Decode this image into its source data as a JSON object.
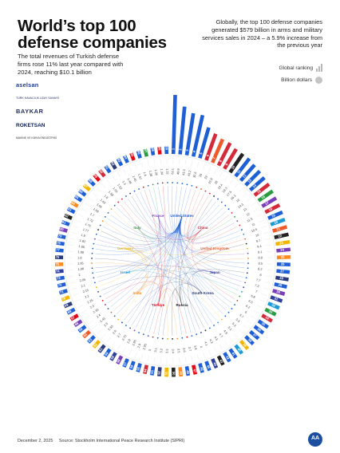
{
  "header": {
    "title": "World’s top 100 defense companies",
    "subtitle": "The total revenues of Turkish defense firms rose 11% last year compared with 2024, reaching $10.1 billion",
    "note": "Globally, the top 100 defense companies generated $579 billion in arms and military services sales in 2024 – a 5.9% increase from the previous year"
  },
  "legend": {
    "ranking_label": "Global ranking",
    "value_label": "Billion dollars",
    "ranking_icon": "ascending-bars-icon",
    "value_icon": "gray-dot-icon"
  },
  "logos": [
    {
      "name": "aselsan",
      "text": "aselsan"
    },
    {
      "name": "tusas",
      "text": "TÜRK HAVACILIK UZAY SANAYİİ"
    },
    {
      "name": "baykar",
      "text": "BAYKAR"
    },
    {
      "name": "roketsan",
      "text": "ROKETSAN"
    },
    {
      "name": "mke",
      "text": "MAKİNE VE KİMYA ENDÜSTRİSİ"
    }
  ],
  "footer": {
    "date": "December 2, 2025",
    "source": "Source: Stockholm International Peace Research Institute (SIPRI)",
    "brand": "AA"
  },
  "colors": {
    "United States": "#1f5fd6",
    "China": "#d42a3a",
    "United Kingdom": "#ef5a2b",
    "Russia": "#222222",
    "Germany": "#f2b705",
    "Türkiye": "#e30a17",
    "Japan": "#2f3f9e",
    "South Korea": "#2a3a7a",
    "India": "#ff8a1e",
    "Israel": "#1b9ad6",
    "France": "#7a3fb8",
    "Italy": "#2a9d43",
    "Other": "#aaaaaa"
  },
  "chart_data": {
    "type": "radial-bar",
    "value_unit": "Billion dollars",
    "countries": [
      "United States",
      "China",
      "United Kingdom",
      "Japan",
      "South Korea",
      "Russia",
      "Türkiye",
      "India",
      "Israel",
      "Germany",
      "Italy",
      "France"
    ],
    "ranks": [
      1,
      2,
      3,
      4,
      5,
      6,
      7,
      8,
      9,
      10,
      11,
      12,
      13,
      14,
      15,
      16,
      17,
      18,
      19,
      20,
      21,
      22,
      23,
      24,
      25,
      26,
      27,
      28,
      29,
      30,
      31,
      32,
      33,
      34,
      35,
      36,
      37,
      38,
      39,
      40,
      41,
      42,
      43,
      44,
      45,
      46,
      47,
      48,
      49,
      50,
      51,
      52,
      53,
      54,
      55,
      56,
      57,
      58,
      59,
      60,
      61,
      62,
      63,
      64,
      65,
      66,
      67,
      68,
      69,
      70,
      71,
      72,
      73,
      74,
      75,
      76,
      77,
      78,
      79,
      80,
      81,
      82,
      83,
      84,
      85,
      86,
      87,
      88,
      89,
      90,
      91,
      92,
      93,
      94,
      95,
      96,
      97,
      98,
      99,
      100
    ],
    "values": [
      63.1,
      49.9,
      43.3,
      43.2,
      30.6,
      26.0,
      23.0,
      22.8,
      20.0,
      19.4,
      19.3,
      17.5,
      16.3,
      15.0,
      14.3,
      13.0,
      12.0,
      11.5,
      11.0,
      10.5,
      10.0,
      9.7,
      9.4,
      9.1,
      8.8,
      8.5,
      8.2,
      8.0,
      7.7,
      7.3,
      7.0,
      6.8,
      6.5,
      6.2,
      6.0,
      5.7,
      5.5,
      5.3,
      5.1,
      4.9,
      4.7,
      4.5,
      4.3,
      4.1,
      4.0,
      3.8,
      3.7,
      3.6,
      3.5,
      3.4,
      3.3,
      3.2,
      3.1,
      3.0,
      2.95,
      2.9,
      2.85,
      2.8,
      2.75,
      2.7,
      2.6,
      2.55,
      2.5,
      2.45,
      2.4,
      2.35,
      2.3,
      2.25,
      2.2,
      2.15,
      2.1,
      2.05,
      2.0,
      1.98,
      1.95,
      1.9,
      1.88,
      1.85,
      1.82,
      1.8,
      1.77,
      1.75,
      1.72,
      1.7,
      1.68,
      1.65,
      1.62,
      1.6,
      1.58,
      1.55,
      1.52,
      1.5,
      1.48,
      1.45,
      1.42,
      1.4,
      1.38,
      1.36,
      1.34,
      1.32
    ],
    "country_of": [
      "United States",
      "United States",
      "United States",
      "United States",
      "United States",
      "China",
      "United Kingdom",
      "China",
      "China",
      "Russia",
      "United States",
      "United States",
      "United States",
      "United States",
      "China",
      "Italy",
      "France",
      "China",
      "United States",
      "Israel",
      "United Kingdom",
      "Russia",
      "Germany",
      "France",
      "India",
      "United States",
      "United States",
      "South Korea",
      "United States",
      "France",
      "Japan",
      "Israel",
      "Italy",
      "China",
      "United States",
      "United States",
      "United States",
      "United States",
      "Germany",
      "Israel",
      "United States",
      "United States",
      "Russia",
      "Japan",
      "United States",
      "United States",
      "Türkiye",
      "United States",
      "India",
      "Russia",
      "Germany",
      "South Korea",
      "United States",
      "China",
      "United States",
      "United States",
      "United States",
      "France",
      "Japan",
      "United States",
      "South Korea",
      "Germany",
      "United States",
      "United Kingdom",
      "United States",
      "France",
      "Türkiye",
      "United States",
      "South Korea",
      "Germany",
      "United States",
      "United States",
      "United States",
      "Japan",
      "India",
      "South Korea",
      "United States",
      "United States",
      "United States",
      "France",
      "United States",
      "Russia",
      "United States",
      "India",
      "United States",
      "United States",
      "Germany",
      "United States",
      "Türkiye",
      "China",
      "United States",
      "South Korea",
      "United States",
      "United States",
      "Türkiye",
      "United States",
      "Italy",
      "United States",
      "Türkiye",
      "United States"
    ]
  }
}
